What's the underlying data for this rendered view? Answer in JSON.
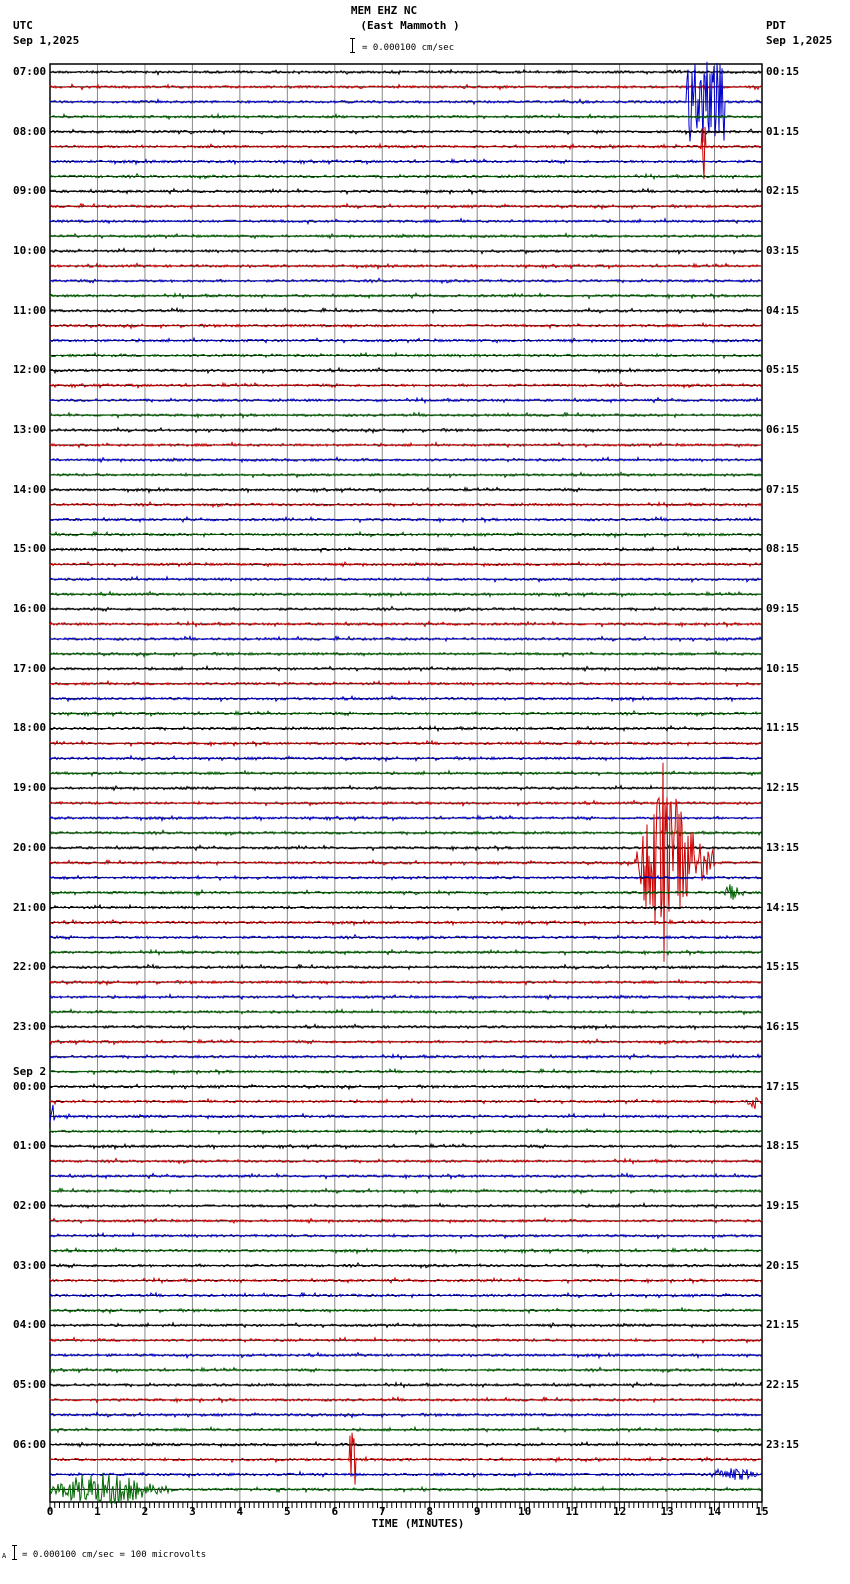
{
  "header": {
    "station": "MEM EHZ NC",
    "location": "(East Mammoth )",
    "scale_text": "= 0.000100 cm/sec",
    "left_tz": "UTC",
    "left_date": "Sep 1,2025",
    "right_tz": "PDT",
    "right_date": "Sep 1,2025"
  },
  "footer": {
    "xlabel": "TIME (MINUTES)",
    "scale_prefix": "A",
    "scale_text": "= 0.000100 cm/sec =      100 microvolts"
  },
  "colors": {
    "trace_cycle": [
      "#000000",
      "#cc0000",
      "#0000cc",
      "#006600"
    ],
    "grid": "#888888",
    "frame": "#000000"
  },
  "chart_data": {
    "type": "line",
    "title": "MEM EHZ NC (East Mammoth )",
    "xlabel": "TIME (MINUTES)",
    "ylabel": "",
    "x_ticks": [
      0,
      1,
      2,
      3,
      4,
      5,
      6,
      7,
      8,
      9,
      10,
      11,
      12,
      13,
      14,
      15
    ],
    "xlim": [
      0,
      15
    ],
    "traces_per_hour": 4,
    "trace_minutes": 15,
    "left_labels": [
      {
        "row": 0,
        "text": "07:00"
      },
      {
        "row": 4,
        "text": "08:00"
      },
      {
        "row": 8,
        "text": "09:00"
      },
      {
        "row": 12,
        "text": "10:00"
      },
      {
        "row": 16,
        "text": "11:00"
      },
      {
        "row": 20,
        "text": "12:00"
      },
      {
        "row": 24,
        "text": "13:00"
      },
      {
        "row": 28,
        "text": "14:00"
      },
      {
        "row": 32,
        "text": "15:00"
      },
      {
        "row": 36,
        "text": "16:00"
      },
      {
        "row": 40,
        "text": "17:00"
      },
      {
        "row": 44,
        "text": "18:00"
      },
      {
        "row": 48,
        "text": "19:00"
      },
      {
        "row": 52,
        "text": "20:00"
      },
      {
        "row": 56,
        "text": "21:00"
      },
      {
        "row": 60,
        "text": "22:00"
      },
      {
        "row": 64,
        "text": "23:00"
      },
      {
        "row": 68,
        "text": "00:00",
        "date": "Sep 2"
      },
      {
        "row": 72,
        "text": "01:00"
      },
      {
        "row": 76,
        "text": "02:00"
      },
      {
        "row": 80,
        "text": "03:00"
      },
      {
        "row": 84,
        "text": "04:00"
      },
      {
        "row": 88,
        "text": "05:00"
      },
      {
        "row": 92,
        "text": "06:00"
      }
    ],
    "right_labels": [
      {
        "row": 0,
        "text": "00:15"
      },
      {
        "row": 4,
        "text": "01:15"
      },
      {
        "row": 8,
        "text": "02:15"
      },
      {
        "row": 12,
        "text": "03:15"
      },
      {
        "row": 16,
        "text": "04:15"
      },
      {
        "row": 20,
        "text": "05:15"
      },
      {
        "row": 24,
        "text": "06:15"
      },
      {
        "row": 28,
        "text": "07:15"
      },
      {
        "row": 32,
        "text": "08:15"
      },
      {
        "row": 36,
        "text": "09:15"
      },
      {
        "row": 40,
        "text": "10:15"
      },
      {
        "row": 44,
        "text": "11:15"
      },
      {
        "row": 48,
        "text": "12:15"
      },
      {
        "row": 52,
        "text": "13:15"
      },
      {
        "row": 56,
        "text": "14:15"
      },
      {
        "row": 60,
        "text": "15:15"
      },
      {
        "row": 64,
        "text": "16:15"
      },
      {
        "row": 68,
        "text": "17:15"
      },
      {
        "row": 72,
        "text": "18:15"
      },
      {
        "row": 76,
        "text": "19:15"
      },
      {
        "row": 80,
        "text": "20:15"
      },
      {
        "row": 84,
        "text": "21:15"
      },
      {
        "row": 88,
        "text": "22:15"
      },
      {
        "row": 92,
        "text": "23:15"
      }
    ],
    "total_rows": 96,
    "events": [
      {
        "row": 2,
        "start_min": 13.4,
        "end_min": 14.2,
        "amp": 40,
        "kind": "spike"
      },
      {
        "row": 5,
        "start_min": 13.7,
        "end_min": 13.8,
        "amp": 55,
        "kind": "spike"
      },
      {
        "row": 53,
        "start_min": 12.3,
        "end_min": 14.0,
        "amp": 110,
        "kind": "quake"
      },
      {
        "row": 55,
        "start_min": 14.2,
        "end_min": 14.6,
        "amp": 8,
        "kind": "burst"
      },
      {
        "row": 69,
        "start_min": 14.7,
        "end_min": 15.0,
        "amp": 8,
        "kind": "burst"
      },
      {
        "row": 70,
        "start_min": 0.0,
        "end_min": 0.1,
        "amp": 14,
        "kind": "spike"
      },
      {
        "row": 93,
        "start_min": 6.3,
        "end_min": 6.45,
        "amp": 28,
        "kind": "spike"
      },
      {
        "row": 94,
        "start_min": 13.9,
        "end_min": 15.0,
        "amp": 7,
        "kind": "burst"
      },
      {
        "row": 95,
        "start_min": 0.0,
        "end_min": 2.5,
        "amp": 16,
        "kind": "burst"
      }
    ]
  }
}
